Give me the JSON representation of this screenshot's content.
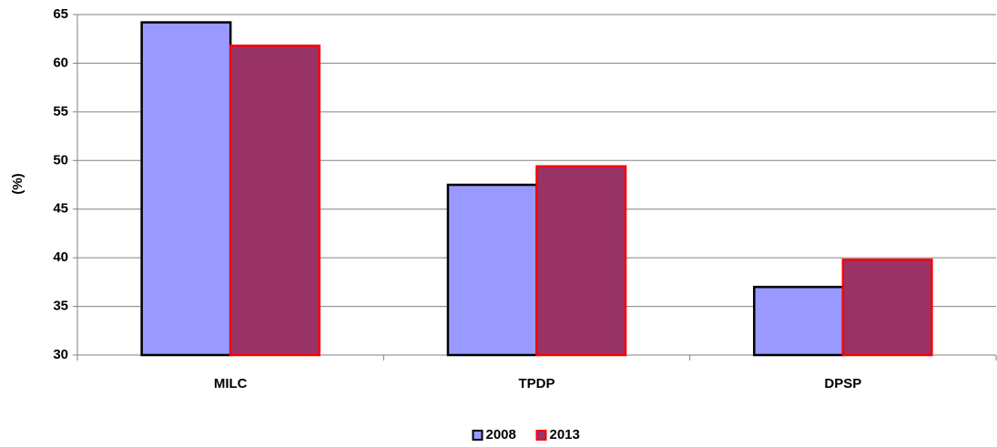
{
  "chart_data": {
    "type": "bar",
    "y_label": "(%)",
    "categories": [
      "MILC",
      "TPDP",
      "DPSP"
    ],
    "series": [
      {
        "name": "2008",
        "color": "#9999ff",
        "edgecolor": "#000000",
        "values": [
          64.2,
          47.5,
          37.0
        ]
      },
      {
        "name": "2013",
        "color": "#993366",
        "edgecolor": "#ff0000",
        "values": [
          61.8,
          49.4,
          39.8
        ]
      }
    ],
    "ylim": [
      30,
      65
    ],
    "yticks": [
      30,
      35,
      40,
      45,
      50,
      55,
      60,
      65
    ],
    "grid": true,
    "legend": "bottom"
  }
}
